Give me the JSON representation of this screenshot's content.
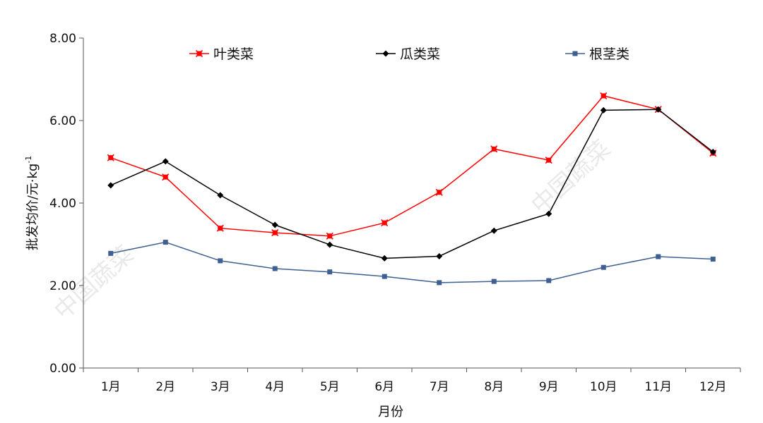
{
  "chart_data": {
    "type": "line",
    "xlabel": "月份",
    "ylabel": "批发均价/元·kg",
    "ylabel_superscript": "-1",
    "categories": [
      "1月",
      "2月",
      "3月",
      "4月",
      "5月",
      "6月",
      "7月",
      "8月",
      "9月",
      "10月",
      "11月",
      "12月"
    ],
    "ylim": [
      0,
      8
    ],
    "yticks": [
      "0.00",
      "2.00",
      "4.00",
      "6.00",
      "8.00"
    ],
    "grid": false,
    "legend_position": "top",
    "series": [
      {
        "name": "叶类菜",
        "color": "#ff0000",
        "marker": "star",
        "values": [
          5.1,
          4.63,
          3.39,
          3.28,
          3.2,
          3.52,
          4.26,
          5.31,
          5.04,
          6.6,
          6.27,
          5.21
        ]
      },
      {
        "name": "瓜类菜",
        "color": "#000000",
        "marker": "diamond",
        "values": [
          4.43,
          5.01,
          4.19,
          3.47,
          2.99,
          2.66,
          2.71,
          3.33,
          3.74,
          6.25,
          6.27,
          5.24
        ]
      },
      {
        "name": "根茎类",
        "color": "#3d5f91",
        "marker": "square",
        "values": [
          2.78,
          3.05,
          2.6,
          2.41,
          2.33,
          2.22,
          2.07,
          2.1,
          2.12,
          2.44,
          2.7,
          2.64
        ]
      }
    ]
  },
  "watermark": "中国蔬菜"
}
